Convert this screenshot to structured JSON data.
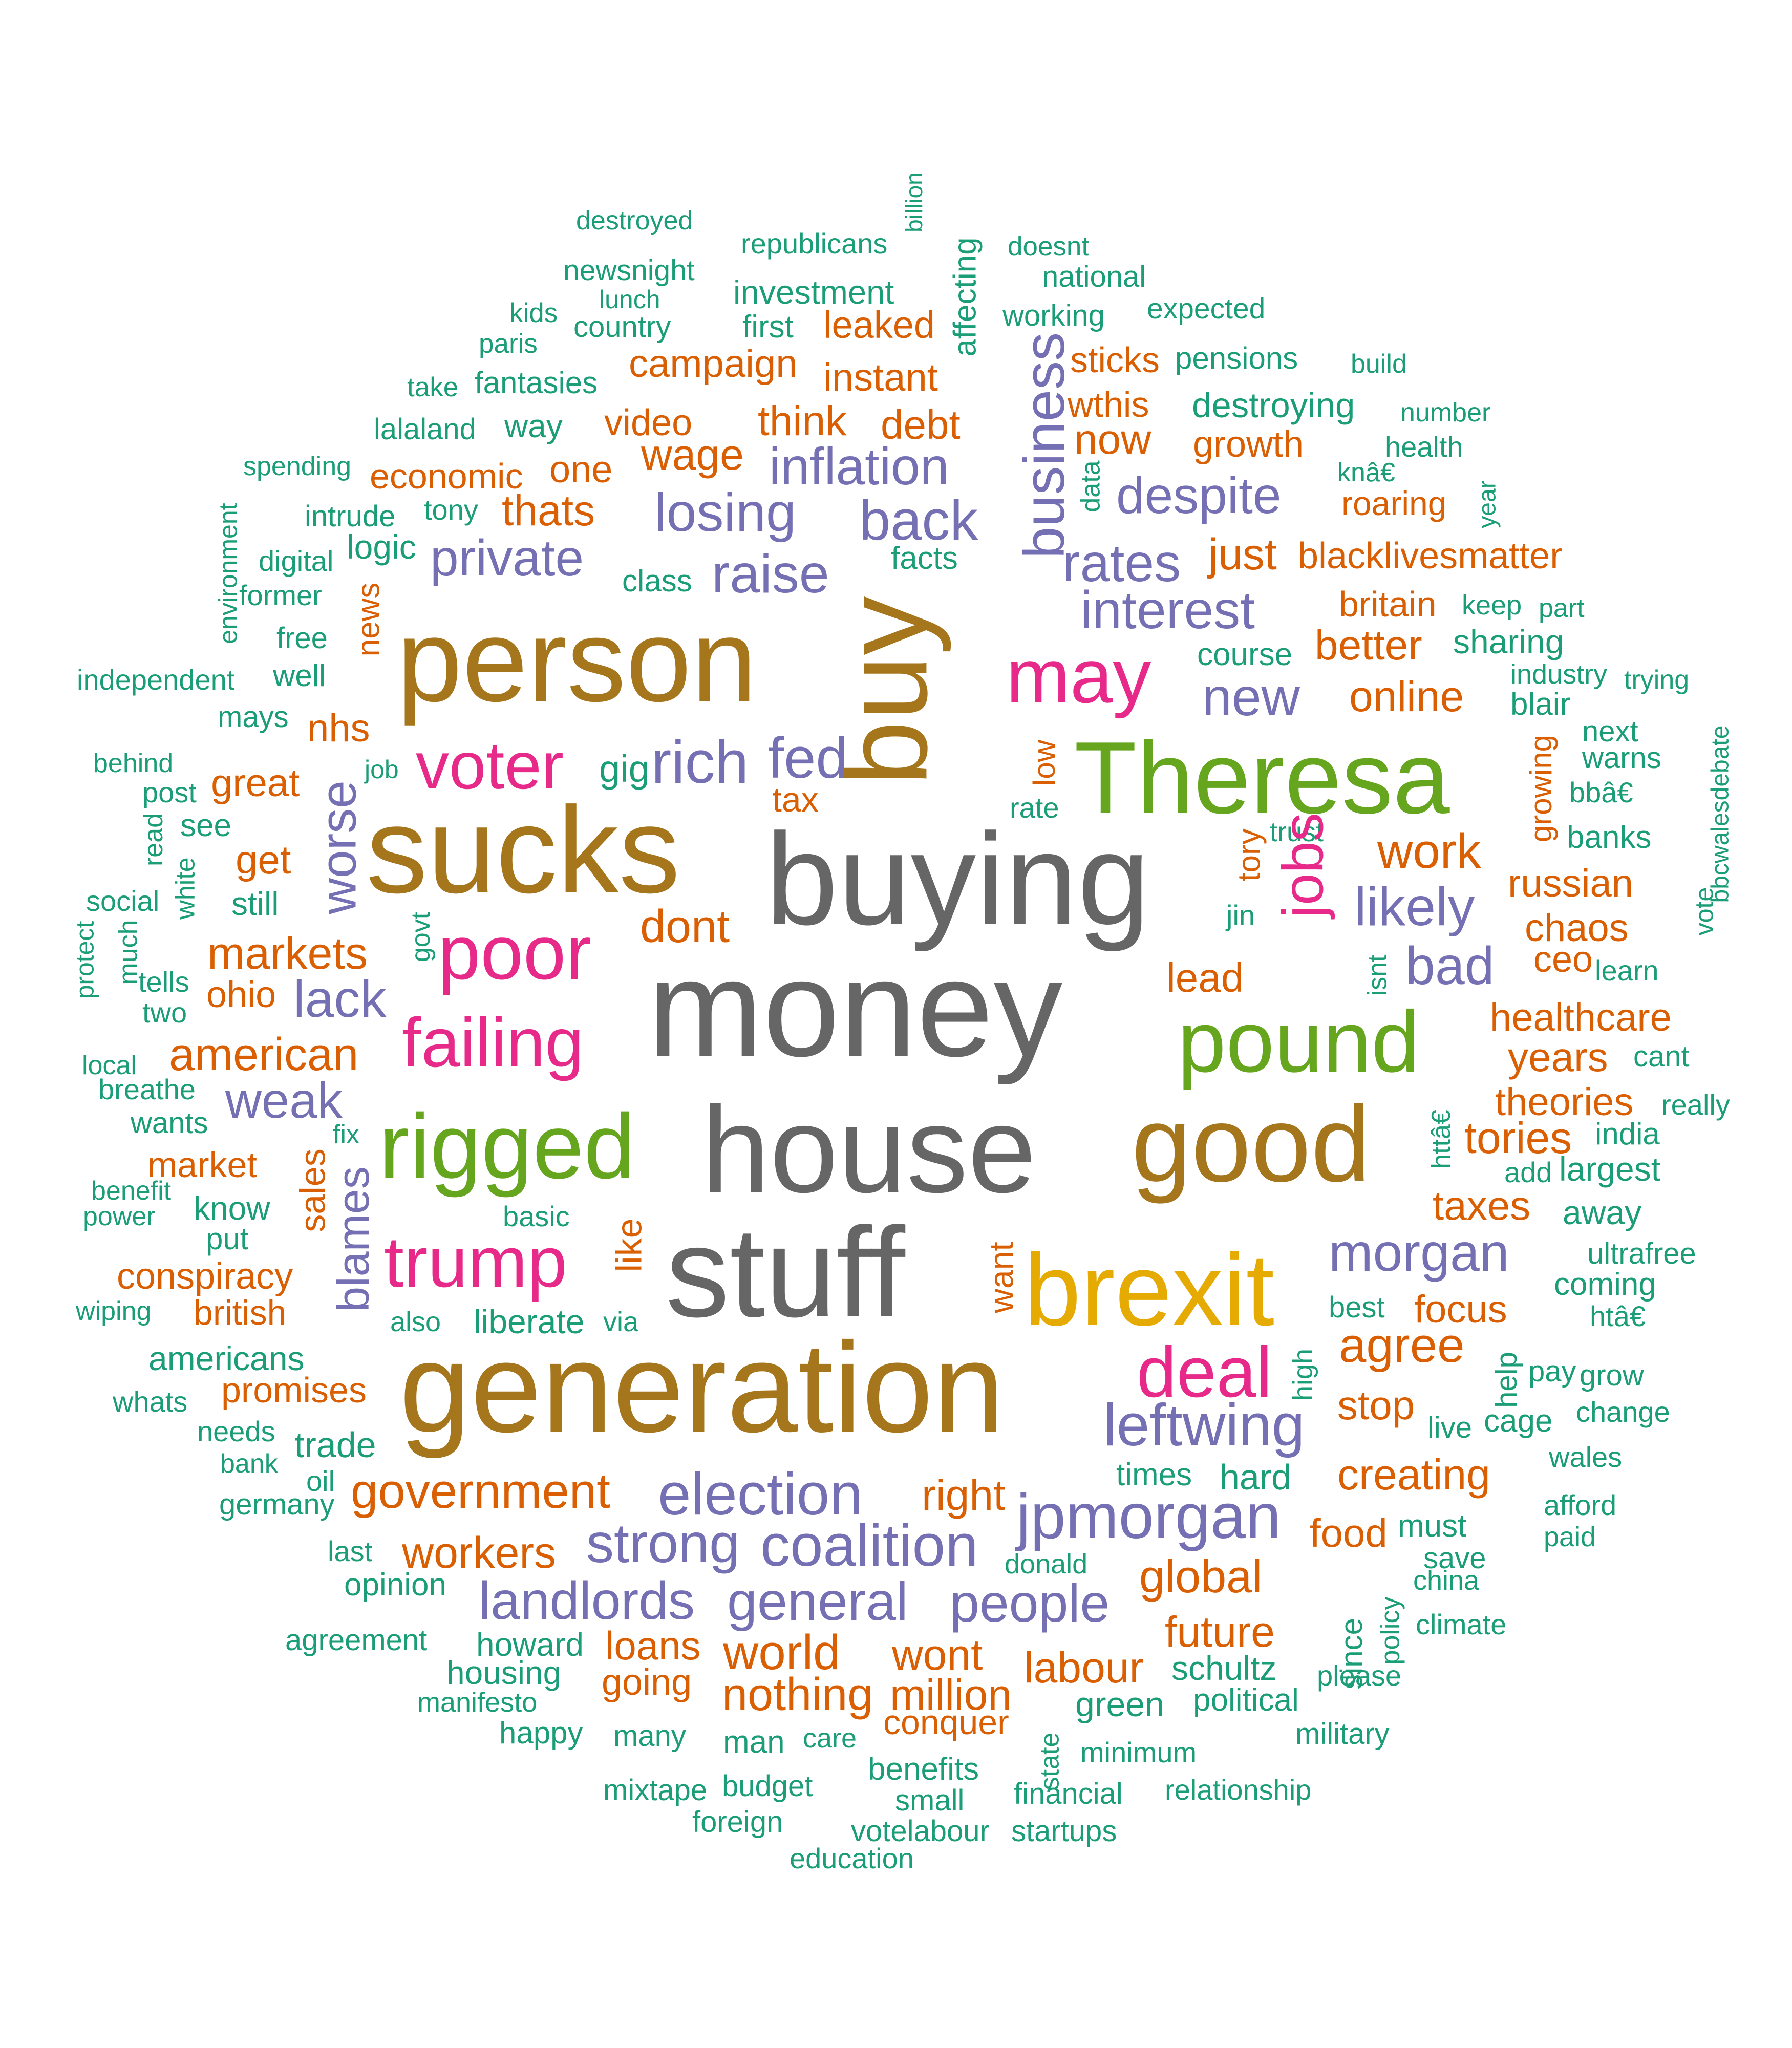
{
  "colors": {
    "teal": "#1b9e77",
    "orange": "#d95f02",
    "purple": "#7570b3",
    "magenta": "#e7298a",
    "green": "#66a61e",
    "gold": "#e6ab02",
    "brown": "#a6761d",
    "gray": "#666666"
  },
  "words": [
    {
      "text": "destroyed",
      "color": "teal"
    },
    {
      "text": "republicans",
      "color": "teal"
    },
    {
      "text": "billion",
      "color": "teal"
    },
    {
      "text": "doesnt",
      "color": "teal"
    },
    {
      "text": "newsnight",
      "color": "teal"
    },
    {
      "text": "national",
      "color": "teal"
    },
    {
      "text": "lunch",
      "color": "teal"
    },
    {
      "text": "investment",
      "color": "teal"
    },
    {
      "text": "affecting",
      "color": "teal"
    },
    {
      "text": "expected",
      "color": "teal"
    },
    {
      "text": "kids",
      "color": "teal"
    },
    {
      "text": "country",
      "color": "teal"
    },
    {
      "text": "first",
      "color": "teal"
    },
    {
      "text": "leaked",
      "color": "orange"
    },
    {
      "text": "working",
      "color": "teal"
    },
    {
      "text": "paris",
      "color": "teal"
    },
    {
      "text": "campaign",
      "color": "orange"
    },
    {
      "text": "sticks",
      "color": "orange"
    },
    {
      "text": "pensions",
      "color": "teal"
    },
    {
      "text": "build",
      "color": "teal"
    },
    {
      "text": "take",
      "color": "teal"
    },
    {
      "text": "fantasies",
      "color": "teal"
    },
    {
      "text": "instant",
      "color": "orange"
    },
    {
      "text": "wthis",
      "color": "orange"
    },
    {
      "text": "destroying",
      "color": "teal"
    },
    {
      "text": "number",
      "color": "teal"
    },
    {
      "text": "lalaland",
      "color": "teal"
    },
    {
      "text": "way",
      "color": "teal"
    },
    {
      "text": "video",
      "color": "orange"
    },
    {
      "text": "think",
      "color": "orange"
    },
    {
      "text": "debt",
      "color": "orange"
    },
    {
      "text": "business",
      "color": "purple"
    },
    {
      "text": "now",
      "color": "orange"
    },
    {
      "text": "growth",
      "color": "orange"
    },
    {
      "text": "health",
      "color": "teal"
    },
    {
      "text": "spending",
      "color": "teal"
    },
    {
      "text": "economic",
      "color": "orange"
    },
    {
      "text": "one",
      "color": "orange"
    },
    {
      "text": "wage",
      "color": "orange"
    },
    {
      "text": "inflation",
      "color": "purple"
    },
    {
      "text": "data",
      "color": "teal"
    },
    {
      "text": "despite",
      "color": "purple"
    },
    {
      "text": "knâ€",
      "color": "teal"
    },
    {
      "text": "environment",
      "color": "teal"
    },
    {
      "text": "intrude",
      "color": "teal"
    },
    {
      "text": "tony",
      "color": "teal"
    },
    {
      "text": "thats",
      "color": "orange"
    },
    {
      "text": "losing",
      "color": "purple"
    },
    {
      "text": "back",
      "color": "purple"
    },
    {
      "text": "roaring",
      "color": "orange"
    },
    {
      "text": "year",
      "color": "teal"
    },
    {
      "text": "logic",
      "color": "teal"
    },
    {
      "text": "private",
      "color": "purple"
    },
    {
      "text": "digital",
      "color": "teal"
    },
    {
      "text": "class",
      "color": "teal"
    },
    {
      "text": "raise",
      "color": "purple"
    },
    {
      "text": "facts",
      "color": "teal"
    },
    {
      "text": "rates",
      "color": "purple"
    },
    {
      "text": "just",
      "color": "orange"
    },
    {
      "text": "blacklivesmatter",
      "color": "orange"
    },
    {
      "text": "former",
      "color": "teal"
    },
    {
      "text": "news",
      "color": "orange"
    },
    {
      "text": "interest",
      "color": "purple"
    },
    {
      "text": "britain",
      "color": "orange"
    },
    {
      "text": "keep",
      "color": "teal"
    },
    {
      "text": "part",
      "color": "teal"
    },
    {
      "text": "free",
      "color": "teal"
    },
    {
      "text": "person",
      "color": "brown"
    },
    {
      "text": "buy",
      "color": "brown"
    },
    {
      "text": "course",
      "color": "teal"
    },
    {
      "text": "better",
      "color": "orange"
    },
    {
      "text": "sharing",
      "color": "teal"
    },
    {
      "text": "independent",
      "color": "teal"
    },
    {
      "text": "well",
      "color": "teal"
    },
    {
      "text": "may",
      "color": "magenta"
    },
    {
      "text": "new",
      "color": "purple"
    },
    {
      "text": "online",
      "color": "orange"
    },
    {
      "text": "industry",
      "color": "teal"
    },
    {
      "text": "trying",
      "color": "teal"
    },
    {
      "text": "mays",
      "color": "teal"
    },
    {
      "text": "nhs",
      "color": "orange"
    },
    {
      "text": "blair",
      "color": "teal"
    },
    {
      "text": "next",
      "color": "teal"
    },
    {
      "text": "behind",
      "color": "teal"
    },
    {
      "text": "job",
      "color": "teal"
    },
    {
      "text": "voter",
      "color": "magenta"
    },
    {
      "text": "gig",
      "color": "teal"
    },
    {
      "text": "rich",
      "color": "purple"
    },
    {
      "text": "fed",
      "color": "purple"
    },
    {
      "text": "low",
      "color": "orange"
    },
    {
      "text": "Theresa",
      "color": "green"
    },
    {
      "text": "growing",
      "color": "orange"
    },
    {
      "text": "warns",
      "color": "teal"
    },
    {
      "text": "bbcwalesdebate",
      "color": "teal"
    },
    {
      "text": "post",
      "color": "teal"
    },
    {
      "text": "great",
      "color": "orange"
    },
    {
      "text": "tax",
      "color": "orange"
    },
    {
      "text": "rate",
      "color": "teal"
    },
    {
      "text": "bbâ€",
      "color": "teal"
    },
    {
      "text": "read",
      "color": "teal"
    },
    {
      "text": "see",
      "color": "teal"
    },
    {
      "text": "worse",
      "color": "purple"
    },
    {
      "text": "sucks",
      "color": "brown"
    },
    {
      "text": "trust",
      "color": "teal"
    },
    {
      "text": "banks",
      "color": "teal"
    },
    {
      "text": "get",
      "color": "orange"
    },
    {
      "text": "buying",
      "color": "gray"
    },
    {
      "text": "jobs",
      "color": "magenta"
    },
    {
      "text": "work",
      "color": "orange"
    },
    {
      "text": "tory",
      "color": "orange"
    },
    {
      "text": "russian",
      "color": "orange"
    },
    {
      "text": "white",
      "color": "teal"
    },
    {
      "text": "social",
      "color": "teal"
    },
    {
      "text": "still",
      "color": "teal"
    },
    {
      "text": "govt",
      "color": "teal"
    },
    {
      "text": "likely",
      "color": "purple"
    },
    {
      "text": "vote",
      "color": "teal"
    },
    {
      "text": "protect",
      "color": "teal"
    },
    {
      "text": "dont",
      "color": "orange"
    },
    {
      "text": "jin",
      "color": "teal"
    },
    {
      "text": "chaos",
      "color": "orange"
    },
    {
      "text": "much",
      "color": "teal"
    },
    {
      "text": "markets",
      "color": "orange"
    },
    {
      "text": "poor",
      "color": "magenta"
    },
    {
      "text": "ceo",
      "color": "orange"
    },
    {
      "text": "tells",
      "color": "teal"
    },
    {
      "text": "bad",
      "color": "purple"
    },
    {
      "text": "isnt",
      "color": "teal"
    },
    {
      "text": "learn",
      "color": "teal"
    },
    {
      "text": "two",
      "color": "teal"
    },
    {
      "text": "ohio",
      "color": "orange"
    },
    {
      "text": "lack",
      "color": "purple"
    },
    {
      "text": "lead",
      "color": "orange"
    },
    {
      "text": "money",
      "color": "gray"
    },
    {
      "text": "healthcare",
      "color": "orange"
    },
    {
      "text": "american",
      "color": "orange"
    },
    {
      "text": "failing",
      "color": "magenta"
    },
    {
      "text": "pound",
      "color": "green"
    },
    {
      "text": "years",
      "color": "orange"
    },
    {
      "text": "cant",
      "color": "teal"
    },
    {
      "text": "local",
      "color": "teal"
    },
    {
      "text": "breathe",
      "color": "teal"
    },
    {
      "text": "weak",
      "color": "purple"
    },
    {
      "text": "theories",
      "color": "orange"
    },
    {
      "text": "really",
      "color": "teal"
    },
    {
      "text": "wants",
      "color": "teal"
    },
    {
      "text": "fix",
      "color": "teal"
    },
    {
      "text": "rigged",
      "color": "green"
    },
    {
      "text": "house",
      "color": "gray"
    },
    {
      "text": "good",
      "color": "brown"
    },
    {
      "text": "httâ€",
      "color": "teal"
    },
    {
      "text": "tories",
      "color": "orange"
    },
    {
      "text": "india",
      "color": "teal"
    },
    {
      "text": "market",
      "color": "orange"
    },
    {
      "text": "sales",
      "color": "orange"
    },
    {
      "text": "add",
      "color": "teal"
    },
    {
      "text": "largest",
      "color": "teal"
    },
    {
      "text": "benefit",
      "color": "teal"
    },
    {
      "text": "know",
      "color": "teal"
    },
    {
      "text": "blames",
      "color": "purple"
    },
    {
      "text": "basic",
      "color": "teal"
    },
    {
      "text": "taxes",
      "color": "orange"
    },
    {
      "text": "away",
      "color": "teal"
    },
    {
      "text": "power",
      "color": "teal"
    },
    {
      "text": "put",
      "color": "teal"
    },
    {
      "text": "like",
      "color": "orange"
    },
    {
      "text": "morgan",
      "color": "purple"
    },
    {
      "text": "ultrafree",
      "color": "teal"
    },
    {
      "text": "conspiracy",
      "color": "orange"
    },
    {
      "text": "trump",
      "color": "magenta"
    },
    {
      "text": "stuff",
      "color": "gray"
    },
    {
      "text": "want",
      "color": "orange"
    },
    {
      "text": "brexit",
      "color": "gold"
    },
    {
      "text": "coming",
      "color": "teal"
    },
    {
      "text": "wiping",
      "color": "teal"
    },
    {
      "text": "british",
      "color": "orange"
    },
    {
      "text": "best",
      "color": "teal"
    },
    {
      "text": "focus",
      "color": "orange"
    },
    {
      "text": "htâ€",
      "color": "teal"
    },
    {
      "text": "also",
      "color": "teal"
    },
    {
      "text": "liberate",
      "color": "teal"
    },
    {
      "text": "via",
      "color": "teal"
    },
    {
      "text": "agree",
      "color": "orange"
    },
    {
      "text": "pay",
      "color": "teal"
    },
    {
      "text": "americans",
      "color": "teal"
    },
    {
      "text": "high",
      "color": "teal"
    },
    {
      "text": "help",
      "color": "teal"
    },
    {
      "text": "deal",
      "color": "magenta"
    },
    {
      "text": "grow",
      "color": "teal"
    },
    {
      "text": "whats",
      "color": "teal"
    },
    {
      "text": "promises",
      "color": "orange"
    },
    {
      "text": "generation",
      "color": "brown"
    },
    {
      "text": "stop",
      "color": "orange"
    },
    {
      "text": "change",
      "color": "teal"
    },
    {
      "text": "needs",
      "color": "teal"
    },
    {
      "text": "leftwing",
      "color": "purple"
    },
    {
      "text": "live",
      "color": "teal"
    },
    {
      "text": "cage",
      "color": "teal"
    },
    {
      "text": "trade",
      "color": "teal"
    },
    {
      "text": "bank",
      "color": "teal"
    },
    {
      "text": "wales",
      "color": "teal"
    },
    {
      "text": "times",
      "color": "teal"
    },
    {
      "text": "hard",
      "color": "teal"
    },
    {
      "text": "creating",
      "color": "orange"
    },
    {
      "text": "oil",
      "color": "teal"
    },
    {
      "text": "government",
      "color": "orange"
    },
    {
      "text": "election",
      "color": "purple"
    },
    {
      "text": "right",
      "color": "orange"
    },
    {
      "text": "germany",
      "color": "teal"
    },
    {
      "text": "afford",
      "color": "teal"
    },
    {
      "text": "jpmorgan",
      "color": "purple"
    },
    {
      "text": "paid",
      "color": "teal"
    },
    {
      "text": "must",
      "color": "teal"
    },
    {
      "text": "food",
      "color": "orange"
    },
    {
      "text": "last",
      "color": "teal"
    },
    {
      "text": "workers",
      "color": "orange"
    },
    {
      "text": "strong",
      "color": "purple"
    },
    {
      "text": "coalition",
      "color": "purple"
    },
    {
      "text": "donald",
      "color": "teal"
    },
    {
      "text": "save",
      "color": "teal"
    },
    {
      "text": "china",
      "color": "teal"
    },
    {
      "text": "opinion",
      "color": "teal"
    },
    {
      "text": "global",
      "color": "orange"
    },
    {
      "text": "policy",
      "color": "teal"
    },
    {
      "text": "landlords",
      "color": "purple"
    },
    {
      "text": "general",
      "color": "purple"
    },
    {
      "text": "people",
      "color": "purple"
    },
    {
      "text": "climate",
      "color": "teal"
    },
    {
      "text": "since",
      "color": "teal"
    },
    {
      "text": "future",
      "color": "orange"
    },
    {
      "text": "agreement",
      "color": "teal"
    },
    {
      "text": "howard",
      "color": "teal"
    },
    {
      "text": "loans",
      "color": "orange"
    },
    {
      "text": "world",
      "color": "orange"
    },
    {
      "text": "wont",
      "color": "orange"
    },
    {
      "text": "labour",
      "color": "orange"
    },
    {
      "text": "schultz",
      "color": "teal"
    },
    {
      "text": "housing",
      "color": "teal"
    },
    {
      "text": "please",
      "color": "teal"
    },
    {
      "text": "going",
      "color": "orange"
    },
    {
      "text": "million",
      "color": "orange"
    },
    {
      "text": "nothing",
      "color": "orange"
    },
    {
      "text": "green",
      "color": "teal"
    },
    {
      "text": "political",
      "color": "teal"
    },
    {
      "text": "manifesto",
      "color": "teal"
    },
    {
      "text": "conquer",
      "color": "orange"
    },
    {
      "text": "happy",
      "color": "teal"
    },
    {
      "text": "many",
      "color": "teal"
    },
    {
      "text": "man",
      "color": "teal"
    },
    {
      "text": "care",
      "color": "teal"
    },
    {
      "text": "state",
      "color": "teal"
    },
    {
      "text": "military",
      "color": "teal"
    },
    {
      "text": "minimum",
      "color": "teal"
    },
    {
      "text": "benefits",
      "color": "teal"
    },
    {
      "text": "mixtape",
      "color": "teal"
    },
    {
      "text": "budget",
      "color": "teal"
    },
    {
      "text": "financial",
      "color": "teal"
    },
    {
      "text": "relationship",
      "color": "teal"
    },
    {
      "text": "small",
      "color": "teal"
    },
    {
      "text": "foreign",
      "color": "teal"
    },
    {
      "text": "votelabour",
      "color": "teal"
    },
    {
      "text": "startups",
      "color": "teal"
    },
    {
      "text": "education",
      "color": "teal"
    }
  ]
}
